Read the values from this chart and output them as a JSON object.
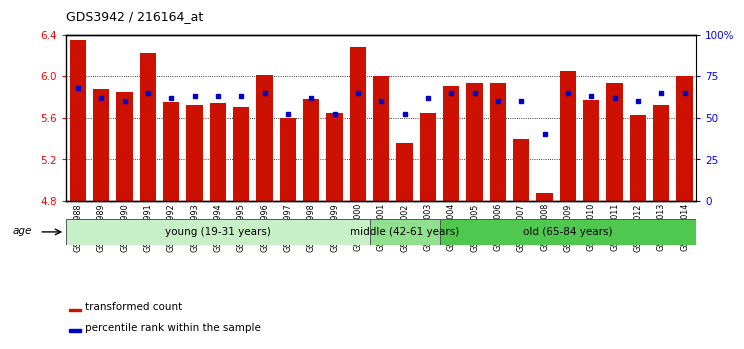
{
  "title": "GDS3942 / 216164_at",
  "samples": [
    "GSM812988",
    "GSM812989",
    "GSM812990",
    "GSM812991",
    "GSM812992",
    "GSM812993",
    "GSM812994",
    "GSM812995",
    "GSM812996",
    "GSM812997",
    "GSM812998",
    "GSM812999",
    "GSM813000",
    "GSM813001",
    "GSM813002",
    "GSM813003",
    "GSM813004",
    "GSM813005",
    "GSM813006",
    "GSM813007",
    "GSM813008",
    "GSM813009",
    "GSM813010",
    "GSM813011",
    "GSM813012",
    "GSM813013",
    "GSM813014"
  ],
  "red_values": [
    6.35,
    5.88,
    5.85,
    6.22,
    5.75,
    5.72,
    5.74,
    5.7,
    6.01,
    5.6,
    5.78,
    5.65,
    6.28,
    6.0,
    5.36,
    5.65,
    5.91,
    5.93,
    5.93,
    5.4,
    4.88,
    6.05,
    5.77,
    5.93,
    5.63,
    5.72,
    6.0
  ],
  "blue_percentiles": [
    68,
    62,
    60,
    65,
    62,
    63,
    63,
    63,
    65,
    52,
    62,
    52,
    65,
    60,
    52,
    62,
    65,
    65,
    60,
    60,
    40,
    65,
    63,
    62,
    60,
    65,
    65
  ],
  "groups": [
    {
      "label": "young (19-31 years)",
      "start": 0,
      "end": 13,
      "color": "#c8f0c8"
    },
    {
      "label": "middle (42-61 years)",
      "start": 13,
      "end": 16,
      "color": "#90e090"
    },
    {
      "label": "old (65-84 years)",
      "start": 16,
      "end": 27,
      "color": "#50c850"
    }
  ],
  "ymin": 4.8,
  "ymax": 6.4,
  "yticks": [
    4.8,
    5.2,
    5.6,
    6.0,
    6.4
  ],
  "right_yticks": [
    0,
    25,
    50,
    75,
    100
  ],
  "right_ylabels": [
    "0",
    "25",
    "50",
    "75",
    "100%"
  ],
  "bar_color": "#cc1100",
  "dot_color": "#0000cc",
  "legend_red": "transformed count",
  "legend_blue": "percentile rank within the sample",
  "xtick_bg_color": "#d0d0d0",
  "group_border_color": "#555555"
}
